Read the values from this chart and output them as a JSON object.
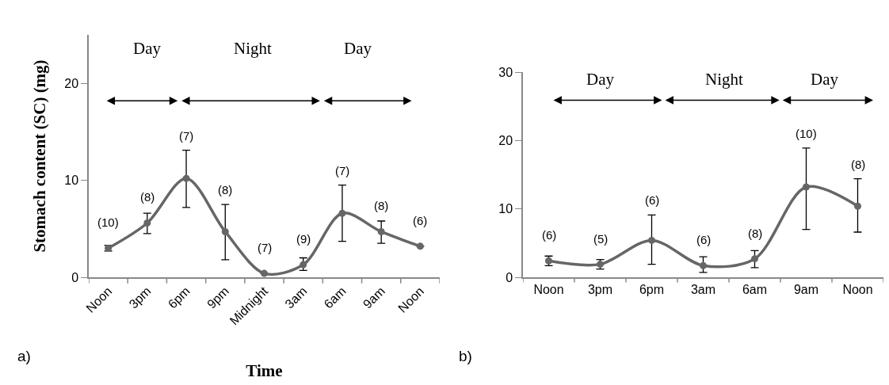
{
  "chart_data": [
    {
      "type": "line",
      "ylabel": "Stomach content (SC) (mg)",
      "xlabel": "Time",
      "categories": [
        "Noon",
        "3pm",
        "6pm",
        "9pm",
        "Midnight",
        "3am",
        "6am",
        "9am",
        "Noon"
      ],
      "series": [
        {
          "color": "#666666",
          "values": [
            3.0,
            5.6,
            10.2,
            4.7,
            0.4,
            1.3,
            6.6,
            4.7,
            3.2
          ],
          "errors": [
            [
              2.7,
              3.3
            ],
            [
              4.5,
              6.6
            ],
            [
              7.2,
              13.1
            ],
            [
              1.8,
              7.5
            ],
            null,
            [
              0.7,
              2.0
            ],
            [
              3.7,
              9.5
            ],
            [
              3.5,
              5.8
            ],
            null
          ]
        }
      ],
      "ylim": [
        0,
        25
      ],
      "yticks": [
        0,
        10,
        20
      ],
      "grid": false,
      "legend": false,
      "marker": "circle",
      "line_style": "solid",
      "annotations": [
        "Day",
        "Night",
        "Day",
        "a)",
        "(10)",
        "(8)",
        "(7)",
        "(8)",
        "(7)",
        "(9)",
        "(7)",
        "(8)",
        "(6)"
      ]
    },
    {
      "type": "line",
      "categories": [
        "Noon",
        "3pm",
        "6pm",
        "3am",
        "6am",
        "9am",
        "Noon"
      ],
      "series": [
        {
          "color": "#666666",
          "values": [
            2.4,
            1.9,
            5.4,
            1.7,
            2.7,
            13.2,
            10.4
          ],
          "errors": [
            [
              1.7,
              3.1
            ],
            [
              1.2,
              2.6
            ],
            [
              1.9,
              9.1
            ],
            [
              0.7,
              3.0
            ],
            [
              1.4,
              3.9
            ],
            [
              7.0,
              18.9
            ],
            [
              6.6,
              14.4
            ]
          ]
        }
      ],
      "ylim": [
        0,
        30
      ],
      "yticks": [
        0,
        10,
        20,
        30
      ],
      "grid": false,
      "legend": false,
      "marker": "circle",
      "line_style": "solid",
      "annotations": [
        "Day",
        "Night",
        "Day",
        "b)",
        "(6)",
        "(5)",
        "(6)",
        "(6)",
        "(8)",
        "(10)",
        "(8)"
      ]
    }
  ]
}
